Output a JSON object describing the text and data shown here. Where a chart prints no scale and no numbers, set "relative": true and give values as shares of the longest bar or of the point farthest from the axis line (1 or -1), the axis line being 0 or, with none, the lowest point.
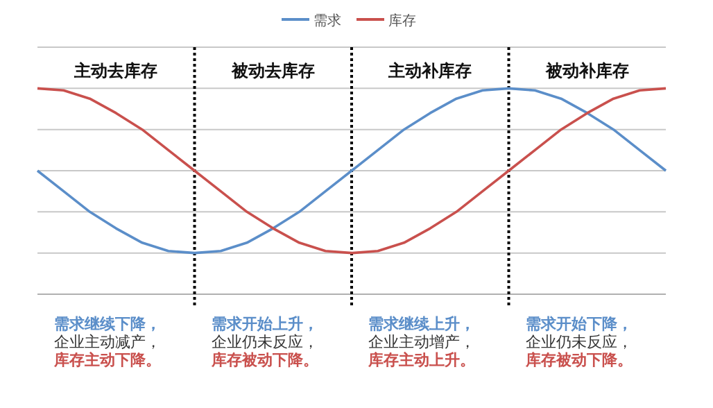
{
  "chart_data": {
    "type": "line",
    "relative": true,
    "categories": [
      null,
      null,
      null,
      "主动去库存",
      null,
      null,
      null,
      null,
      null,
      "被动去库存",
      null,
      null,
      null,
      null,
      null,
      "主动补库存",
      null,
      null,
      null,
      null,
      null,
      "被动补库存",
      null,
      null,
      null
    ],
    "tick_labels": "x",
    "grid": true,
    "legend": "top",
    "series": [
      {
        "name": "需求",
        "color": "#5b8ec9",
        "values": [
          0.6,
          0.5,
          0.4,
          0.32,
          0.25,
          0.21,
          0.2,
          0.21,
          0.25,
          0.32,
          0.4,
          0.5,
          0.6,
          0.7,
          0.8,
          0.88,
          0.95,
          0.99,
          1.0,
          0.99,
          0.95,
          0.88,
          0.8,
          0.7,
          0.6
        ]
      },
      {
        "name": "库存",
        "color": "#c9504d",
        "values": [
          1.0,
          0.99,
          0.95,
          0.88,
          0.8,
          0.7,
          0.6,
          0.5,
          0.4,
          0.32,
          0.25,
          0.21,
          0.2,
          0.21,
          0.25,
          0.32,
          0.4,
          0.5,
          0.6,
          0.7,
          0.8,
          0.88,
          0.95,
          0.99,
          1.0
        ]
      }
    ],
    "annotations": [
      "需求继续下降，",
      "企业主动减产，",
      "库存主动下降。",
      "需求开始上升，",
      "企业仍未反应，",
      "库存被动下降。",
      "需求继续上升，",
      "企业主动增产，",
      "库存主动上升。",
      "需求开始下降，",
      "企业仍未反应，",
      "库存被动下降。"
    ]
  }
}
